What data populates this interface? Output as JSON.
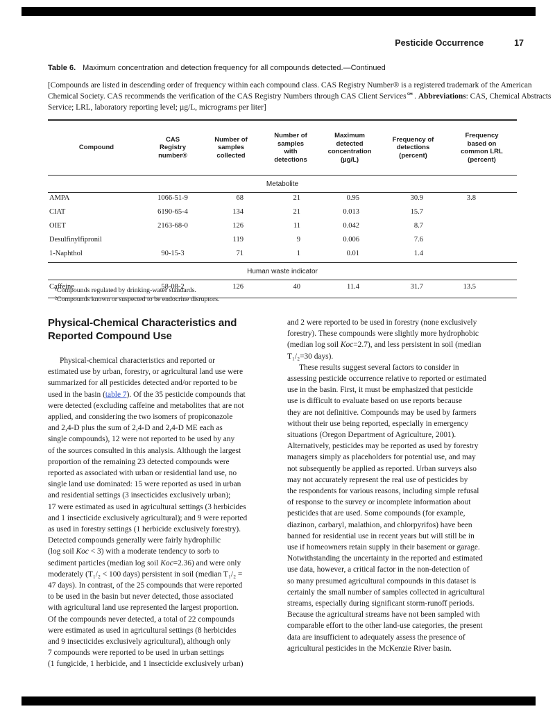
{
  "page_header": {
    "title": "Pesticide Occurrence",
    "page_number": "17"
  },
  "table_caption": {
    "label": "Table 6.",
    "text": "Maximum concentration and detection frequency for all compounds detected.—Continued"
  },
  "table_note": {
    "lines": [
      "[Compounds are listed in descending order of frequency within each compound class. CAS Registry Number® is a registered trademark of the American",
      "Chemical Society. CAS recommends the verification of the CAS Registry Numbers through CAS Client Services℠. Abbreviations: CAS, Chemical Abstracts",
      "Service; LRL, laboratory reporting level; µg/L, micrograms per liter]"
    ],
    "decor": [
      {
        "substr": "Abbreviations",
        "style": "bold"
      }
    ]
  },
  "table": {
    "columns": [
      {
        "lines": [
          "Compound"
        ]
      },
      {
        "lines": [
          "CAS",
          "Registry",
          "number®"
        ]
      },
      {
        "lines": [
          "Number of",
          "samples",
          "collected"
        ]
      },
      {
        "lines": [
          "Number of",
          "samples",
          "with",
          "detections"
        ]
      },
      {
        "lines": [
          "Maximum",
          "detected",
          "concentration",
          "(µg/L)"
        ]
      },
      {
        "lines": [
          "Frequency of",
          "detections",
          "(percent)"
        ]
      },
      {
        "lines": [
          "Frequency",
          "based on",
          "common LRL",
          "(percent)"
        ]
      }
    ],
    "sections": [
      {
        "label": "Metabolite",
        "rows": [
          [
            "AMPA",
            "1066-51-9",
            "68",
            "21",
            "0.95",
            "30.9",
            "3.8"
          ],
          [
            "CIAT",
            "6190-65-4",
            "134",
            "21",
            "0.013",
            "15.7",
            ""
          ],
          [
            "OIET",
            "2163-68-0",
            "126",
            "11",
            "0.042",
            "8.7",
            ""
          ],
          [
            "Desulfinylfipronil",
            "",
            "119",
            "9",
            "0.006",
            "7.6",
            ""
          ],
          [
            "1-Naphthol",
            "90-15-3",
            "71",
            "1",
            "0.01",
            "1.4",
            ""
          ]
        ]
      },
      {
        "label": "Human waste indicator",
        "rows": [
          [
            "Caffeine",
            "58-08-2",
            "126",
            "40",
            "11.4",
            "31.7",
            "13.5"
          ]
        ]
      }
    ],
    "footnotes": [
      "¹Compounds regulated by drinking-water standards.",
      "²Compounds known or suspected to be endocrine disruptors."
    ]
  },
  "article": {
    "heading_lines": [
      "Physical-Chemical Characteristics and",
      "Reported Compound Use"
    ],
    "left_paragraphs": [
      {
        "indent": true,
        "decor": [
          {
            "substr": "table 7",
            "style": "link"
          },
          {
            "substr": "Koc",
            "style": "italic"
          }
        ],
        "lines": [
          "Physical-chemical characteristics and reported or",
          "estimated use by urban, forestry, or agricultural land use were",
          "summarized for all pesticides detected and/or reported to be",
          "used in the basin (table 7). Of the 35 pesticide compounds that",
          "were detected (excluding caffeine and metabolites that are not",
          "applied, and considering the two isomers of propiconazole",
          "and 2,4-D plus the sum of 2,4-D and 2,4-D ME each as",
          "single compounds), 12 were not reported to be used by any",
          "of the sources consulted in this analysis. Although the largest",
          "proportion of the remaining 23 detected compounds were",
          "reported as associated with urban or residential land use, no",
          "single land use dominated: 15 were reported as used in urban",
          "and residential settings (3 insecticides exclusively urban);",
          "17 were estimated as used in agricultural settings (3 herbicides",
          "and 1 insecticide exclusively agricultural); and 9 were reported",
          "as used in forestry settings (1 herbicide exclusively forestry).",
          "Detected compounds generally were fairly hydrophilic",
          "(log soil Koc < 3) with a moderate tendency to sorb to",
          "sediment particles (median log soil Koc=2.36) and were only",
          "moderately (T₁/₂ < 100 days) persistent in soil (median T₁/₂ =",
          "47 days). In contrast, of the 25 compounds that were reported",
          "to be used in the basin but never detected, those associated",
          "with agricultural land use represented the largest proportion.",
          "Of the compounds never detected, a total of 22 compounds",
          "were estimated as used in agricultural settings (8 herbicides",
          "and 9 insecticides exclusively agricultural), although only",
          "7 compounds were reported to be used in urban settings",
          "(1 fungicide, 1 herbicide, and 1 insecticide exclusively urban)"
        ]
      }
    ],
    "right_paragraphs": [
      {
        "indent": false,
        "decor": [
          {
            "substr": "Koc",
            "style": "italic"
          }
        ],
        "lines": [
          "and 2 were reported to be used in forestry (none exclusively",
          "forestry). These compounds were slightly more hydrophobic",
          "(median log soil Koc=2.7), and less persistent in soil (median",
          "T₁/₂=30 days)."
        ]
      },
      {
        "indent": true,
        "decor": [],
        "lines": [
          "These results suggest several factors to consider in",
          "assessing pesticide occurrence relative to reported or estimated",
          "use in the basin. First, it must be emphasized that pesticide",
          "use is difficult to evaluate based on use reports because",
          "they are not definitive. Compounds may be used by farmers",
          "without their use being reported, especially in emergency",
          "situations (Oregon Department of Agriculture, 2001).",
          "Alternatively, pesticides may be reported as used by forestry",
          "managers simply as placeholders for potential use, and may",
          "not subsequently be applied as reported. Urban surveys also",
          "may not accurately represent the real use of pesticides by",
          "the respondents for various reasons, including simple refusal",
          "of response to the survey or incomplete information about",
          "pesticides that are used. Some compounds (for example,",
          "diazinon, carbaryl, malathion, and chlorpyrifos) have been",
          "banned for residential use in recent years but will still be in",
          "use if homeowners retain supply in their basement or garage.",
          "Notwithstanding the uncertainty in the reported and estimated",
          "use data, however, a critical factor in the non-detection of",
          "so many presumed agricultural compounds in this dataset is",
          "certainly the small number of samples collected in agricultural",
          "streams, especially during significant storm-runoff periods.",
          "Because the agricultural streams have not been sampled with",
          "comparable effort to the other land-use categories, the present",
          "data are insufficient to adequately assess the presence of",
          "agricultural pesticides in the McKenzie River basin."
        ]
      }
    ]
  },
  "colors": {
    "link": "#3050c8",
    "page_bar": "#000000",
    "rule": "#2e2e2e"
  }
}
